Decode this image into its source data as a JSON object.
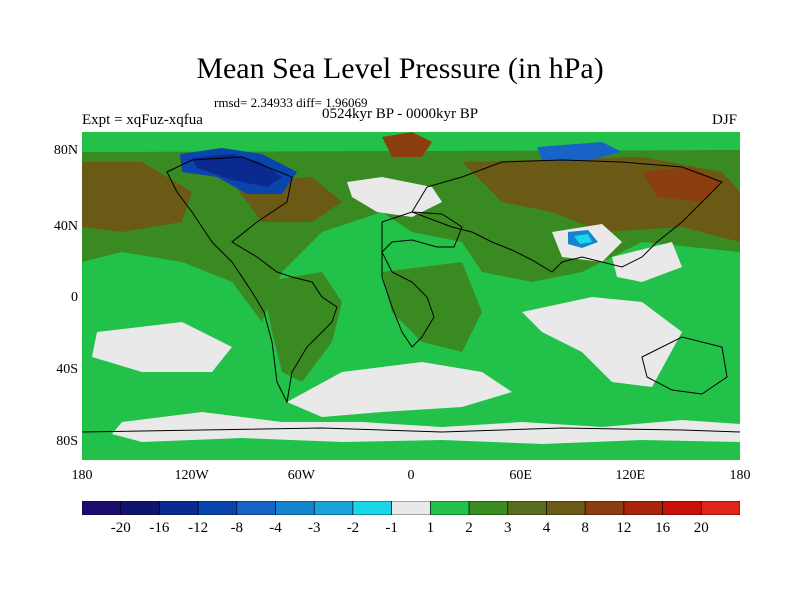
{
  "header": {
    "title": "Mean Sea Level Pressure (in hPa)",
    "stats": "rmsd= 2.34933 diff= 1.96069",
    "experiment": "Expt = xqFuz-xqfua",
    "period": "0524kyr BP - 0000kyr BP",
    "season": "DJF"
  },
  "map": {
    "lat_labels": [
      "80N",
      "40N",
      "0",
      "40S",
      "80S"
    ],
    "lon_labels": [
      "180",
      "120W",
      "60W",
      "0",
      "60E",
      "120E",
      "180"
    ]
  },
  "colorbar": {
    "labels": [
      "-20",
      "-16",
      "-12",
      "-8",
      "-4",
      "-3",
      "-2",
      "-1",
      "1",
      "2",
      "3",
      "4",
      "8",
      "12",
      "16",
      "20"
    ],
    "colors": [
      "#1b0e70",
      "#10136f",
      "#0b2a8f",
      "#0a44ad",
      "#1a63c6",
      "#1783cc",
      "#18a2d6",
      "#19d7e6",
      "#e9e9e9",
      "#22c24a",
      "#3a8a22",
      "#586c1d",
      "#6b5a15",
      "#8b3f10",
      "#a8240a",
      "#c81209",
      "#e0241a"
    ]
  }
}
